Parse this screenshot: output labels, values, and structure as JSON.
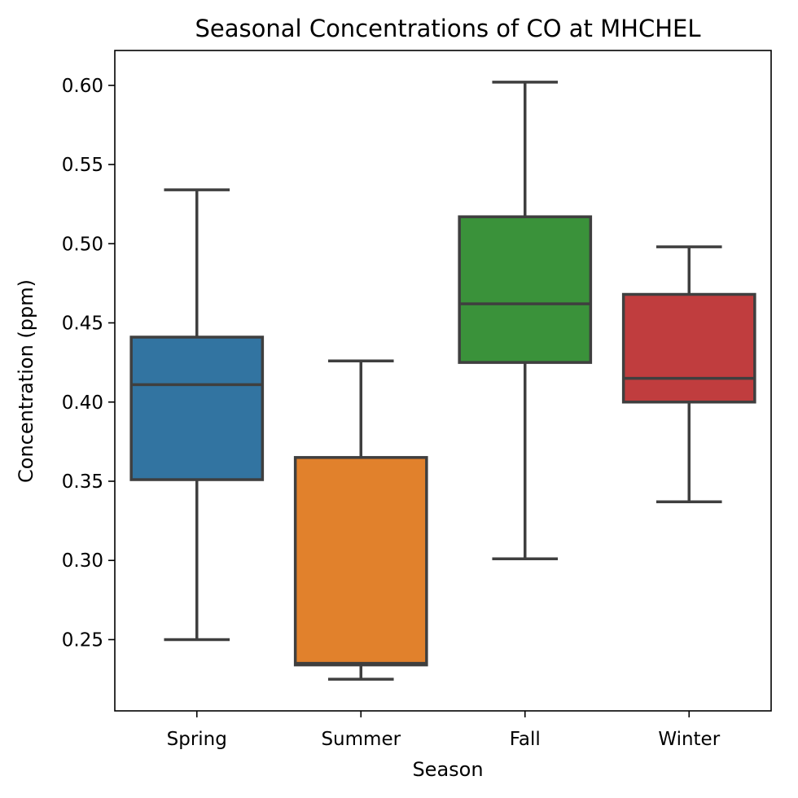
{
  "chart_data": {
    "type": "box",
    "title": "Seasonal Concentrations of CO at MHCHEL",
    "xlabel": "Season",
    "ylabel": "Concentration (ppm)",
    "ylim": [
      0.205,
      0.622
    ],
    "yticks": [
      0.25,
      0.3,
      0.35,
      0.4,
      0.45,
      0.5,
      0.55,
      0.6
    ],
    "ytick_labels": [
      "0.25",
      "0.30",
      "0.35",
      "0.40",
      "0.45",
      "0.50",
      "0.55",
      "0.60"
    ],
    "grid": false,
    "categories": [
      "Spring",
      "Summer",
      "Fall",
      "Winter"
    ],
    "boxes": [
      {
        "name": "Spring",
        "whisker_low": 0.25,
        "q1": 0.351,
        "median": 0.411,
        "q3": 0.441,
        "whisker_high": 0.534,
        "color": "#3274a1"
      },
      {
        "name": "Summer",
        "whisker_low": 0.225,
        "q1": 0.234,
        "median": 0.235,
        "q3": 0.365,
        "whisker_high": 0.426,
        "color": "#e1812c"
      },
      {
        "name": "Fall",
        "whisker_low": 0.301,
        "q1": 0.425,
        "median": 0.462,
        "q3": 0.517,
        "whisker_high": 0.602,
        "color": "#3a923a"
      },
      {
        "name": "Winter",
        "whisker_low": 0.337,
        "q1": 0.4,
        "median": 0.415,
        "q3": 0.468,
        "whisker_high": 0.498,
        "color": "#c03d3e"
      }
    ]
  }
}
